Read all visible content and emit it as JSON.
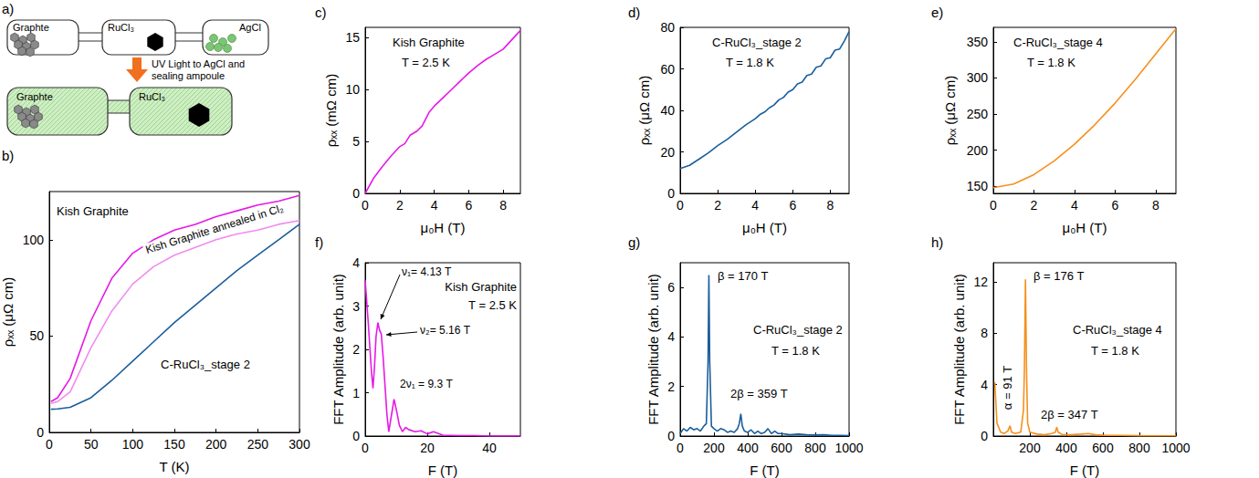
{
  "diagram": {
    "panel": "a)",
    "top_chambers": [
      "Graphte",
      "RuCl₃",
      "AgCl"
    ],
    "arrow_label": "UV Light to AgCl and sealing ampoule",
    "bottom_chambers": [
      "Graphte",
      "RuCl₃"
    ]
  },
  "chart_data": [
    {
      "panel": "b)",
      "type": "line",
      "xlabel": "T (K)",
      "ylabel": "ρₓₓ (μΩ cm)",
      "xlim": [
        0,
        300
      ],
      "xticks": [
        0,
        50,
        100,
        150,
        200,
        250,
        300
      ],
      "ylim": [
        0,
        125
      ],
      "yticks": [
        0,
        50,
        100
      ],
      "x": [
        2,
        10,
        25,
        50,
        75,
        100,
        125,
        150,
        175,
        200,
        225,
        250,
        275,
        300
      ],
      "series": [
        {
          "name": "Kish Graphite",
          "color": "#e619e6",
          "values": [
            16,
            18,
            28,
            58,
            80,
            93,
            100,
            105,
            108,
            112,
            115,
            118,
            120,
            123
          ]
        },
        {
          "name": "Kish Graphite annealed in Cl₂",
          "color": "#f08cf0",
          "values": [
            15,
            16,
            21,
            44,
            63,
            77,
            86,
            92,
            96,
            100,
            103,
            105,
            108,
            110
          ]
        },
        {
          "name": "C-RuCl₃_stage 2",
          "color": "#1b5e9c",
          "values": [
            12,
            12.2,
            13,
            18,
            27,
            37,
            47,
            57,
            66,
            75,
            84,
            92,
            100,
            108
          ]
        }
      ]
    },
    {
      "panel": "c)",
      "type": "line",
      "xlabel": "μ₀H (T)",
      "ylabel": "ρₓₓ (mΩ cm)",
      "xlim": [
        0,
        9
      ],
      "xticks": [
        0,
        2,
        4,
        6,
        8
      ],
      "ylim": [
        0,
        16
      ],
      "yticks": [
        0,
        5,
        10,
        15
      ],
      "color": "#e619e6",
      "annotations": [
        "Kish Graphite",
        "T = 2.5 K"
      ],
      "x": [
        0,
        0.5,
        1,
        1.5,
        2,
        2.3,
        2.6,
        3,
        3.3,
        3.7,
        4,
        4.5,
        5,
        5.5,
        6,
        6.5,
        7,
        7.5,
        8,
        8.5,
        9
      ],
      "values": [
        0,
        1.5,
        2.6,
        3.6,
        4.5,
        4.8,
        5.6,
        6.0,
        6.5,
        7.8,
        8.4,
        9.2,
        10.0,
        10.8,
        11.6,
        12.3,
        12.9,
        13.4,
        13.9,
        14.8,
        15.7
      ]
    },
    {
      "panel": "d)",
      "type": "line",
      "xlabel": "μ₀H (T)",
      "ylabel": "ρₓₓ (μΩ cm)",
      "xlim": [
        0,
        9
      ],
      "xticks": [
        0,
        2,
        4,
        6,
        8
      ],
      "ylim": [
        0,
        80
      ],
      "yticks": [
        0,
        20,
        40,
        60,
        80
      ],
      "color": "#1b5e9c",
      "annotations": [
        "C-RuCl₃_stage 2",
        "T = 1.8 K"
      ],
      "x": [
        0,
        0.5,
        1,
        1.5,
        2,
        2.5,
        3,
        3.5,
        4,
        4.25,
        4.5,
        4.75,
        5,
        5.25,
        5.5,
        5.75,
        6,
        6.25,
        6.5,
        6.75,
        7,
        7.25,
        7.5,
        7.75,
        8,
        8.25,
        8.5,
        8.75,
        9
      ],
      "values": [
        12,
        13.5,
        16.5,
        19.5,
        23,
        26,
        29.5,
        33,
        36,
        38,
        39.2,
        41.2,
        42.6,
        45,
        46.2,
        48.8,
        50,
        52.8,
        53.6,
        56.8,
        57.5,
        60.8,
        61.4,
        64.8,
        65.4,
        69,
        69.6,
        73.5,
        78
      ]
    },
    {
      "panel": "e)",
      "type": "line",
      "xlabel": "μ₀H (T)",
      "ylabel": "ρₓₓ (μΩ cm)",
      "xlim": [
        0,
        9
      ],
      "xticks": [
        0,
        2,
        4,
        6,
        8
      ],
      "ylim": [
        140,
        370
      ],
      "yticks": [
        150,
        200,
        250,
        300,
        350
      ],
      "color": "#f5901e",
      "annotations": [
        "C-RuCl₃_stage 4",
        "T = 1.8 K"
      ],
      "x": [
        0,
        1,
        2,
        3,
        4,
        5,
        6,
        7,
        8,
        9
      ],
      "values": [
        148,
        153,
        166,
        185,
        208,
        235,
        265,
        298,
        333,
        368
      ]
    },
    {
      "panel": "f)",
      "type": "line",
      "xlabel": "F (T)",
      "ylabel": "FFT Amplitude (arb. unit)",
      "xlim": [
        0,
        50
      ],
      "xticks": [
        0,
        20,
        40
      ],
      "ylim": [
        0,
        4
      ],
      "yticks": [
        0,
        1,
        2,
        3,
        4
      ],
      "color": "#e619e6",
      "annotations": [
        "Kish Graphite",
        "T = 2.5 K",
        "ν₁= 4.13 T",
        "ν₂= 5.16 T",
        "2ν₁ = 9.3 T"
      ],
      "x": [
        0,
        1,
        2,
        2.5,
        3,
        3.5,
        4.1,
        4.6,
        5.2,
        5.8,
        7,
        7.6,
        8.5,
        9.3,
        10.2,
        11,
        12,
        13,
        14,
        16,
        18,
        20,
        22,
        25,
        30,
        35,
        40,
        50
      ],
      "values": [
        3.6,
        2.6,
        1.5,
        1.1,
        1.6,
        2.3,
        2.62,
        2.45,
        2.35,
        1.8,
        0.5,
        0.1,
        0.5,
        0.85,
        0.55,
        0.25,
        0.1,
        0.2,
        0.15,
        0.1,
        0.12,
        0.05,
        0.1,
        0.02,
        0.01,
        0.01,
        0,
        0
      ]
    },
    {
      "panel": "g)",
      "type": "line",
      "xlabel": "F (T)",
      "ylabel": "FFT Amplitude (arb. unit)",
      "xlim": [
        0,
        1000
      ],
      "xticks": [
        0,
        200,
        400,
        600,
        800,
        1000
      ],
      "ylim": [
        0,
        7
      ],
      "yticks": [
        0,
        2,
        4,
        6
      ],
      "color": "#1b5e9c",
      "annotations": [
        "C-RuCl₃_stage 2",
        "T = 1.8 K",
        "β = 170 T",
        "2β = 359 T"
      ],
      "x": [
        0,
        20,
        40,
        60,
        80,
        100,
        120,
        140,
        155,
        165,
        170,
        175,
        185,
        200,
        220,
        240,
        260,
        280,
        300,
        320,
        340,
        350,
        359,
        368,
        380,
        400,
        420,
        440,
        460,
        480,
        500,
        520,
        540,
        560,
        580,
        600,
        650,
        700,
        750,
        800,
        850,
        900,
        950,
        1000
      ],
      "values": [
        0.1,
        0.3,
        0.2,
        0.35,
        0.25,
        0.3,
        0.2,
        0.4,
        0.5,
        3,
        6.5,
        3,
        0.4,
        0.3,
        0.2,
        0.3,
        0.25,
        0.15,
        0.2,
        0.15,
        0.3,
        0.5,
        0.9,
        0.4,
        0.2,
        0.15,
        0.25,
        0.1,
        0.2,
        0.1,
        0.15,
        0.3,
        0.1,
        0.2,
        0.1,
        0.1,
        0.05,
        0.08,
        0.05,
        0.04,
        0.05,
        0.03,
        0.03,
        0.02
      ]
    },
    {
      "panel": "h)",
      "type": "line",
      "xlabel": "F (T)",
      "ylabel": "FFT Amplitude (arb. unit)",
      "xlim": [
        0,
        1000
      ],
      "xticks": [
        200,
        400,
        600,
        800,
        1000
      ],
      "ylim": [
        0,
        13.5
      ],
      "yticks": [
        0,
        4,
        8,
        12
      ],
      "color": "#f5901e",
      "annotations": [
        "C-RuCl₃_stage 4",
        "T = 1.8 K",
        "β = 176 T",
        "α = 91 T",
        "2β = 347 T"
      ],
      "x": [
        8,
        20,
        40,
        60,
        80,
        91,
        100,
        120,
        150,
        165,
        170,
        176,
        182,
        188,
        200,
        240,
        280,
        320,
        340,
        347,
        355,
        380,
        420,
        480,
        520,
        560,
        620,
        700,
        800,
        900,
        1000
      ],
      "values": [
        4.2,
        1,
        0.3,
        0.2,
        0.4,
        0.8,
        0.3,
        0.2,
        0.3,
        2,
        5,
        12.2,
        5,
        1,
        0.3,
        0.15,
        0.1,
        0.2,
        0.3,
        0.7,
        0.3,
        0.1,
        0.1,
        0.15,
        0.2,
        0.1,
        0.05,
        0.05,
        0.03,
        0.02,
        0.02
      ]
    }
  ]
}
